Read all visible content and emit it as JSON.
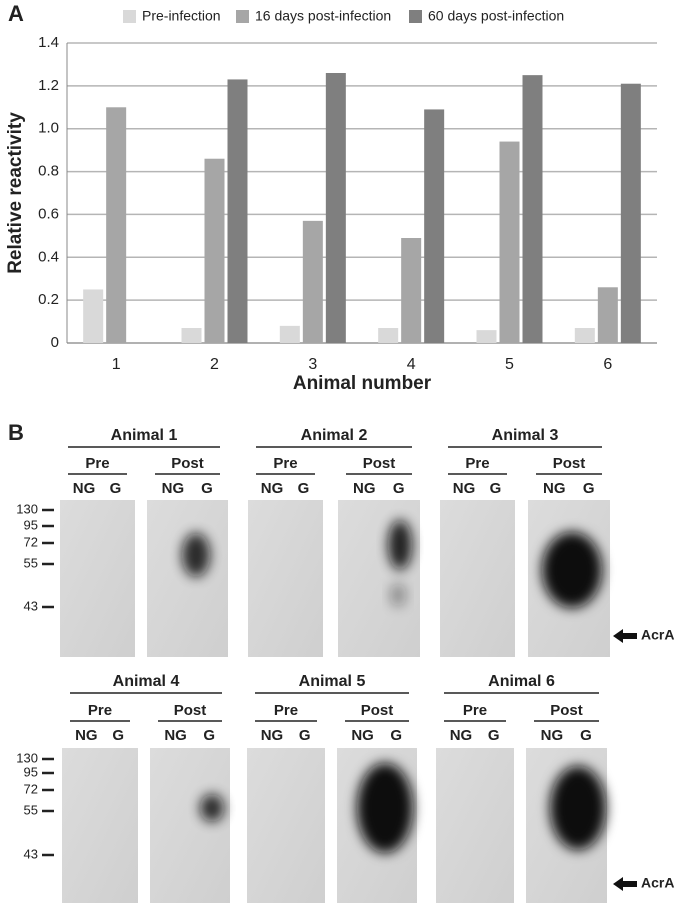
{
  "chart_data": {
    "type": "bar",
    "panel_label": "A",
    "categories": [
      "1",
      "2",
      "3",
      "4",
      "5",
      "6"
    ],
    "series": [
      {
        "name": "Pre-infection",
        "color": "#d9d9d9",
        "values": [
          0.25,
          0.07,
          0.08,
          0.07,
          0.06,
          0.07
        ]
      },
      {
        "name": "16 days post-infection",
        "color": "#a6a6a6",
        "values": [
          1.1,
          0.86,
          0.57,
          0.49,
          0.94,
          0.26
        ]
      },
      {
        "name": "60 days post-infection",
        "color": "#7f7f7f",
        "values": [
          null,
          1.23,
          1.26,
          1.09,
          1.25,
          1.21
        ]
      }
    ],
    "ylabel": "Relative reactivity",
    "xlabel": "Animal number",
    "ylim": [
      0,
      1.4
    ],
    "yticks": [
      0,
      0.2,
      0.4,
      0.6,
      0.8,
      {
        "value": 1,
        "label": "1.0"
      },
      1.2,
      1.4
    ],
    "grid": true,
    "legend": "top"
  },
  "panel_b": {
    "label": "B",
    "rows": [
      {
        "markers": [
          130,
          95,
          72,
          55,
          43
        ],
        "arrow_label": "AcrA",
        "animals": [
          {
            "title": "Animal 1",
            "groups": [
              {
                "name": "Pre",
                "lanes": [
                  "NG",
                  "G"
                ]
              },
              {
                "name": "Post",
                "lanes": [
                  "NG",
                  "G"
                ]
              }
            ]
          },
          {
            "title": "Animal 2",
            "groups": [
              {
                "name": "Pre",
                "lanes": [
                  "NG",
                  "G"
                ]
              },
              {
                "name": "Post",
                "lanes": [
                  "NG",
                  "G"
                ]
              }
            ]
          },
          {
            "title": "Animal 3",
            "groups": [
              {
                "name": "Pre",
                "lanes": [
                  "NG",
                  "G"
                ]
              },
              {
                "name": "Post",
                "lanes": [
                  "NG",
                  "G"
                ]
              }
            ]
          }
        ]
      },
      {
        "markers": [
          130,
          95,
          72,
          55,
          43
        ],
        "arrow_label": "AcrA",
        "animals": [
          {
            "title": "Animal 4",
            "groups": [
              {
                "name": "Pre",
                "lanes": [
                  "NG",
                  "G"
                ]
              },
              {
                "name": "Post",
                "lanes": [
                  "NG",
                  "G"
                ]
              }
            ]
          },
          {
            "title": "Animal 5",
            "groups": [
              {
                "name": "Pre",
                "lanes": [
                  "NG",
                  "G"
                ]
              },
              {
                "name": "Post",
                "lanes": [
                  "NG",
                  "G"
                ]
              }
            ]
          },
          {
            "title": "Animal 6",
            "groups": [
              {
                "name": "Pre",
                "lanes": [
                  "NG",
                  "G"
                ]
              },
              {
                "name": "Post",
                "lanes": [
                  "NG",
                  "G"
                ]
              }
            ]
          }
        ]
      }
    ]
  }
}
